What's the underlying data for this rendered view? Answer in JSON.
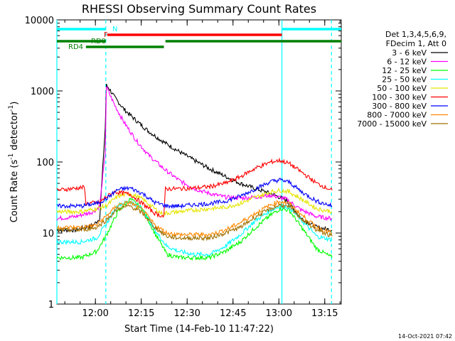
{
  "chart_data": {
    "type": "line",
    "title": "RHESSI Observing Summary Count Rates",
    "xlabel": "Start Time (14-Feb-10 11:47:22)",
    "ylabel": "Count Rate (s",
    "ylabel_sup1": "-1",
    "ylabel_mid": " detector",
    "ylabel_sup2": "-1",
    "ylabel_end": ")",
    "yscale": "log",
    "xlim_min": [
      0,
      93
    ],
    "ylim": [
      1,
      10000
    ],
    "x_ticks": [
      {
        "label": "12:00",
        "min": 12.6
      },
      {
        "label": "12:15",
        "min": 27.6
      },
      {
        "label": "12:30",
        "min": 42.6
      },
      {
        "label": "12:45",
        "min": 57.6
      },
      {
        "label": "13:00",
        "min": 72.6
      },
      {
        "label": "13:15",
        "min": 87.6
      }
    ],
    "y_ticks": [
      {
        "label": "1",
        "value": 1
      },
      {
        "label": "10",
        "value": 10
      },
      {
        "label": "100",
        "value": 100
      },
      {
        "label": "1000",
        "value": 1000
      },
      {
        "label": "10000",
        "value": 10000
      }
    ],
    "legend": {
      "header1": "Det 1,3,4,5,6,9,",
      "header2": "FDecim 1, Att 0",
      "position": "right",
      "entries": [
        {
          "label": "3 - 6 keV",
          "color": "#000000"
        },
        {
          "label": "6 - 12 keV",
          "color": "#ff00ff"
        },
        {
          "label": "12 - 25 keV",
          "color": "#00ff00"
        },
        {
          "label": "25 - 50 keV",
          "color": "#00ffff"
        },
        {
          "label": "50 - 100 keV",
          "color": "#e5e500"
        },
        {
          "label": "100 - 300 keV",
          "color": "#ff0000"
        },
        {
          "label": "300 - 800 keV",
          "color": "#0000ff"
        },
        {
          "label": "800 - 7000 keV",
          "color": "#ff8800"
        },
        {
          "label": "7000 - 15000 keV",
          "color": "#a07000"
        }
      ]
    },
    "flag_bars": [
      {
        "label": "N",
        "color": "#00ffff",
        "segments": [
          [
            0,
            16
          ],
          [
            73.6,
            93
          ]
        ]
      },
      {
        "label": "F",
        "color": "#ff0000",
        "segments": [
          [
            16.5,
            73.6
          ]
        ]
      },
      {
        "label": "RD0",
        "color": "#008000",
        "segments": [
          [
            0,
            16
          ],
          [
            35.5,
            93
          ]
        ]
      },
      {
        "label": "RD4",
        "color": "#008000",
        "segments": [
          [
            9.5,
            35
          ]
        ]
      }
    ],
    "vlines": [
      {
        "min": 0,
        "style": "solid"
      },
      {
        "min": 16.0,
        "style": "dashed"
      },
      {
        "min": 73.6,
        "style": "solid"
      },
      {
        "min": 89.8,
        "style": "dashed"
      }
    ],
    "series": [
      {
        "name": "3 - 6 keV",
        "color": "#000000",
        "x": [
          0,
          6,
          12,
          14,
          15.8,
          16.2,
          17,
          19,
          22,
          26,
          30,
          35,
          40,
          45,
          50,
          55,
          60,
          65,
          70,
          75,
          80,
          85,
          90
        ],
        "values": [
          11,
          11,
          13,
          16,
          300,
          1200,
          1100,
          800,
          550,
          380,
          270,
          190,
          140,
          105,
          80,
          63,
          50,
          42,
          36,
          29,
          16,
          12,
          11
        ]
      },
      {
        "name": "6 - 12 keV",
        "color": "#ff00ff",
        "x": [
          0,
          6,
          12,
          14,
          15.8,
          16.2,
          17,
          19,
          22,
          26,
          30,
          35,
          40,
          45,
          50,
          55,
          60,
          65,
          70,
          75,
          80,
          85,
          90
        ],
        "values": [
          16,
          17,
          20,
          24,
          130,
          1150,
          950,
          620,
          360,
          200,
          125,
          80,
          55,
          42,
          36,
          32,
          31,
          32,
          34,
          30,
          21,
          17,
          16
        ]
      },
      {
        "name": "12 - 25 keV",
        "color": "#00ff00",
        "x": [
          0,
          8,
          13,
          16,
          20,
          24,
          28,
          32,
          36,
          40,
          45,
          50,
          55,
          60,
          65,
          70,
          73,
          76,
          80,
          85,
          90
        ],
        "values": [
          4.5,
          4.5,
          5.5,
          9,
          20,
          30,
          22,
          10,
          5,
          4.5,
          4.5,
          4.5,
          5.5,
          7.5,
          12,
          18,
          22,
          21,
          12,
          6,
          4.5
        ]
      },
      {
        "name": "25 - 50 keV",
        "color": "#00ffff",
        "x": [
          0,
          8,
          13,
          16,
          20,
          24,
          28,
          32,
          36,
          40,
          45,
          50,
          55,
          60,
          65,
          70,
          73,
          76,
          80,
          85,
          90
        ],
        "values": [
          7.5,
          7.5,
          8.5,
          13,
          25,
          28,
          22,
          11,
          6.5,
          5.5,
          5,
          5,
          6.5,
          9.5,
          15,
          21,
          24,
          23,
          15,
          9,
          8
        ]
      },
      {
        "name": "50 - 100 keV",
        "color": "#e5e500",
        "x": [
          0,
          8,
          13,
          16,
          20,
          24,
          28,
          32,
          35,
          35.5,
          40,
          45,
          50,
          55,
          60,
          65,
          70,
          73,
          76,
          80,
          85,
          90
        ],
        "values": [
          20,
          20,
          22,
          24,
          33,
          36,
          30,
          22,
          18,
          19,
          20,
          21,
          22,
          23,
          26,
          32,
          38,
          40,
          38,
          30,
          22,
          20
        ]
      },
      {
        "name": "100 - 300 keV",
        "color": "#ff0000",
        "x": [
          0,
          9,
          9.5,
          14,
          16,
          19,
          24,
          28,
          32,
          35,
          35.5,
          40,
          45,
          50,
          55,
          60,
          65,
          70,
          73,
          76,
          80,
          85,
          90
        ],
        "values": [
          40,
          44,
          26,
          27,
          32,
          38,
          35,
          26,
          19,
          17,
          42,
          42,
          43,
          45,
          50,
          62,
          82,
          100,
          105,
          95,
          72,
          50,
          40
        ]
      },
      {
        "name": "300 - 800 keV",
        "color": "#0000ff",
        "x": [
          0,
          8,
          13,
          16,
          20,
          24,
          28,
          32,
          36,
          40,
          45,
          50,
          55,
          60,
          65,
          70,
          73,
          76,
          80,
          85,
          90
        ],
        "values": [
          24,
          24,
          26,
          30,
          41,
          43,
          36,
          27,
          24,
          24,
          25,
          26,
          28,
          33,
          42,
          53,
          56,
          52,
          38,
          28,
          24
        ]
      },
      {
        "name": "800 - 7000 keV",
        "color": "#ff8800",
        "x": [
          0,
          8,
          13,
          16,
          20,
          24,
          28,
          32,
          36,
          40,
          45,
          50,
          55,
          60,
          65,
          70,
          73,
          76,
          80,
          85,
          90
        ],
        "values": [
          12,
          12,
          13,
          17,
          25,
          27,
          21,
          13,
          10,
          9.5,
          9.5,
          9.5,
          11,
          14,
          19,
          25,
          28,
          26,
          18,
          12,
          10
        ]
      },
      {
        "name": "7000 - 15000 keV",
        "color": "#a07000",
        "x": [
          0,
          8,
          13,
          16,
          20,
          24,
          28,
          32,
          36,
          40,
          45,
          50,
          55,
          60,
          65,
          70,
          73,
          76,
          80,
          85,
          90
        ],
        "values": [
          11,
          11,
          12,
          15,
          22,
          24,
          19,
          12,
          9,
          8.5,
          8.5,
          8.5,
          10,
          12,
          17,
          22,
          25,
          23,
          16,
          11,
          9
        ]
      }
    ]
  },
  "footer": {
    "timestamp": "14-Oct-2021 07:42"
  }
}
